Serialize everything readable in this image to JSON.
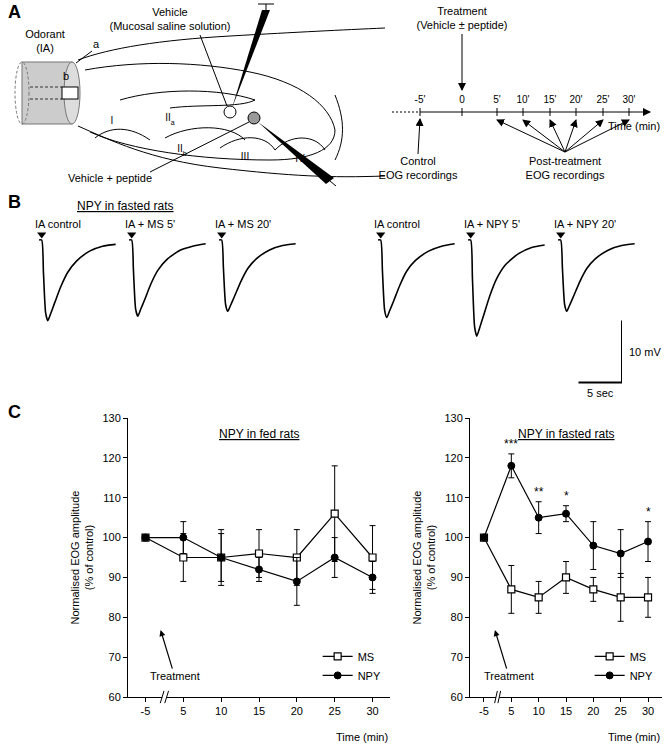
{
  "panel_labels": [
    "A",
    "B",
    "C"
  ],
  "diagram": {
    "odorant": [
      "Odorant",
      "(IA)"
    ],
    "tube_labels": [
      "a",
      "b"
    ],
    "vehicle": [
      "Vehicle",
      "(Mucosal saline solution)"
    ],
    "vehicle_peptide": "Vehicle + peptide",
    "turbinates": [
      {
        "text": "I"
      },
      {
        "text": "II",
        "sub": "a"
      },
      {
        "text": "II",
        "sub": "b"
      },
      {
        "text": "III"
      },
      {
        "text": "IV"
      }
    ],
    "timeline": {
      "treatment": [
        "Treatment",
        "(Vehicle ± peptide)"
      ],
      "ticks": [
        "-5'",
        "0",
        "5'",
        "10'",
        "15'",
        "20'",
        "25'",
        "30'"
      ],
      "axis_label": "Time (min)",
      "control": [
        "Control",
        "EOG recordings"
      ],
      "post": [
        "Post-treatment",
        "EOG recordings"
      ]
    }
  },
  "traces": {
    "type": "line",
    "title": "NPY in fasted rats",
    "tick_labels": false,
    "xlim": [
      -1,
      9
    ],
    "ylim": [
      -16.5,
      1.5
    ],
    "x": [
      -0.3,
      0,
      0.2,
      0.45,
      0.7,
      1.0,
      1.5,
      2.2,
      3,
      4,
      5.5,
      7,
      8.5
    ],
    "stimulus_time": 0,
    "series": [
      {
        "name": "IA control",
        "color": "#000000",
        "values": [
          0,
          0,
          -5.2,
          -11.7,
          -13,
          -12,
          -10.1,
          -7.5,
          -5.2,
          -3.4,
          -1.8,
          -1,
          -0.7
        ]
      },
      {
        "name": "IA + MS 5'",
        "color": "#000000",
        "values": [
          0,
          0,
          -4.9,
          -11.1,
          -12.3,
          -11.3,
          -9.6,
          -7.1,
          -4.9,
          -3.2,
          -1.7,
          -1,
          -0.6
        ]
      },
      {
        "name": "IA + MS 20'",
        "color": "#000000",
        "values": [
          0,
          0,
          -4.6,
          -10.4,
          -11.5,
          -10.6,
          -9,
          -6.7,
          -4.6,
          -3,
          -1.6,
          -0.9,
          -0.6
        ]
      },
      {
        "name": "IA control",
        "color": "#000000",
        "values": [
          0,
          0,
          -5,
          -11.3,
          -12.5,
          -11.5,
          -9.8,
          -7.3,
          -5,
          -3.3,
          -1.8,
          -1,
          -0.6
        ]
      },
      {
        "name": "IA + NPY 5'",
        "color": "#000000",
        "values": [
          0,
          0,
          -6.2,
          -14,
          -15.5,
          -14.3,
          -12.1,
          -9,
          -6.2,
          -4,
          -2.2,
          -1.2,
          -0.8
        ]
      },
      {
        "name": "IA + NPY 20'",
        "color": "#000000",
        "values": [
          0,
          0,
          -4.6,
          -10.4,
          -11.5,
          -10.6,
          -9,
          -6.7,
          -4.6,
          -3,
          -1.6,
          -0.9,
          -0.6
        ]
      }
    ],
    "scale_bar": {
      "x": 5,
      "x_label": "5 sec",
      "y": 10,
      "y_label": "10 mV"
    }
  },
  "chart_data": [
    {
      "type": "line",
      "title": "NPY in fed rats",
      "categories": [
        "-5",
        "5",
        "10",
        "15",
        "20",
        "25",
        "30"
      ],
      "x_label": "Time (min)",
      "y_label": [
        "Normalised EOG amplitude",
        "(% of control)"
      ],
      "ylim": [
        60,
        130
      ],
      "yticks": [
        60,
        70,
        80,
        90,
        100,
        110,
        120,
        130
      ],
      "grid": false,
      "legend": "lower right",
      "treatment_label": "Treatment",
      "series": [
        {
          "name": "MS",
          "color": "#000000",
          "marker": "square-open",
          "values": [
            100,
            95,
            95,
            96,
            95,
            106,
            95
          ],
          "errors": [
            0,
            6,
            7,
            6,
            7,
            12,
            8
          ]
        },
        {
          "name": "NPY",
          "color": "#000000",
          "marker": "circle",
          "values": [
            100,
            100,
            95,
            92,
            89,
            95,
            90
          ],
          "errors": [
            0,
            4,
            6,
            3,
            6,
            5,
            4
          ]
        }
      ],
      "significance": []
    },
    {
      "type": "line",
      "title": "NPY in fasted rats",
      "categories": [
        "-5",
        "5",
        "10",
        "15",
        "20",
        "25",
        "30"
      ],
      "x_label": "Time (min)",
      "y_label": [
        "Normalised EOG amplitude",
        "(% of control)"
      ],
      "ylim": [
        60,
        130
      ],
      "yticks": [
        60,
        70,
        80,
        90,
        100,
        110,
        120,
        130
      ],
      "grid": false,
      "legend": "lower right",
      "treatment_label": "Treatment",
      "series": [
        {
          "name": "MS",
          "color": "#000000",
          "marker": "square-open",
          "values": [
            100,
            87,
            85,
            90,
            87,
            85,
            85
          ],
          "errors": [
            0,
            6,
            4,
            4,
            3,
            6,
            5
          ]
        },
        {
          "name": "NPY",
          "color": "#000000",
          "marker": "circle",
          "values": [
            100,
            118,
            105,
            106,
            98,
            96,
            99
          ],
          "errors": [
            0,
            3,
            4,
            2,
            6,
            6,
            5
          ]
        }
      ],
      "significance": [
        {
          "series": "NPY",
          "category": "5",
          "text": "***"
        },
        {
          "series": "NPY",
          "category": "10",
          "text": "**"
        },
        {
          "series": "NPY",
          "category": "15",
          "text": "*"
        },
        {
          "series": "NPY",
          "category": "30",
          "text": "*"
        }
      ]
    }
  ]
}
